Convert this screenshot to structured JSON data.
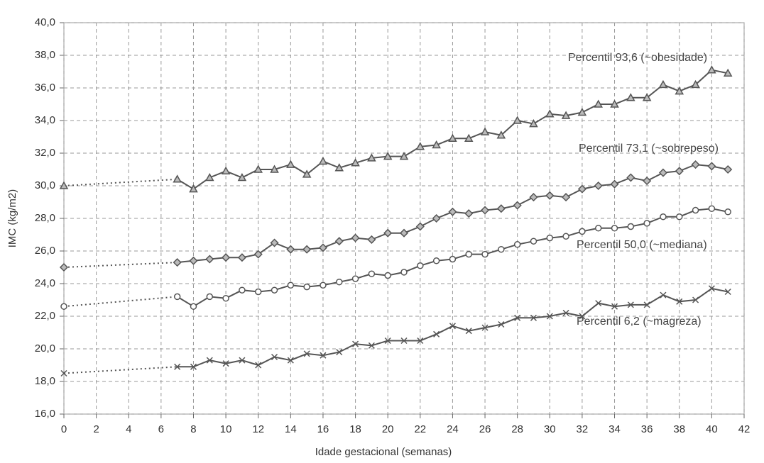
{
  "chart_data": {
    "type": "line",
    "x_label": "Idade gestacional (semanas)",
    "y_label": "IMC (kg/m2)",
    "x": [
      0,
      7,
      8,
      9,
      10,
      11,
      12,
      13,
      14,
      15,
      16,
      17,
      18,
      19,
      20,
      21,
      22,
      23,
      24,
      25,
      26,
      27,
      28,
      29,
      30,
      31,
      32,
      33,
      34,
      35,
      36,
      37,
      38,
      39,
      40,
      41
    ],
    "series": [
      {
        "name": "Percentil 93,6 (~obesidade)",
        "color": "#555555",
        "marker": "triangle",
        "values": [
          30.0,
          30.4,
          29.8,
          30.5,
          30.9,
          30.5,
          31.0,
          31.0,
          31.3,
          30.7,
          31.5,
          31.1,
          31.4,
          31.7,
          31.8,
          31.8,
          32.4,
          32.5,
          32.9,
          32.9,
          33.3,
          33.1,
          34.0,
          33.8,
          34.4,
          34.3,
          34.5,
          35.0,
          35.0,
          35.4,
          35.4,
          36.2,
          35.8,
          36.2,
          37.1,
          36.9
        ]
      },
      {
        "name": "Percentil 73,1 (~sobrepeso)",
        "color": "#555555",
        "marker": "diamond",
        "values": [
          25.0,
          25.3,
          25.4,
          25.5,
          25.6,
          25.6,
          25.8,
          26.5,
          26.1,
          26.1,
          26.2,
          26.6,
          26.8,
          26.7,
          27.1,
          27.1,
          27.5,
          28.0,
          28.4,
          28.3,
          28.5,
          28.6,
          28.8,
          29.3,
          29.4,
          29.3,
          29.8,
          30.0,
          30.1,
          30.5,
          30.3,
          30.8,
          30.9,
          31.3,
          31.2,
          31.0
        ]
      },
      {
        "name": "Percentil 50,0 (~mediana)",
        "color": "#555555",
        "marker": "circle",
        "values": [
          22.6,
          23.2,
          22.6,
          23.2,
          23.1,
          23.6,
          23.5,
          23.6,
          23.9,
          23.8,
          23.9,
          24.1,
          24.3,
          24.6,
          24.5,
          24.7,
          25.1,
          25.4,
          25.5,
          25.8,
          25.8,
          26.1,
          26.4,
          26.6,
          26.8,
          26.9,
          27.2,
          27.4,
          27.4,
          27.5,
          27.7,
          28.1,
          28.1,
          28.5,
          28.6,
          28.4
        ]
      },
      {
        "name": "Percentil 6,2 (~magreza)",
        "color": "#555555",
        "marker": "x",
        "values": [
          18.5,
          18.9,
          18.9,
          19.3,
          19.1,
          19.3,
          19.0,
          19.5,
          19.3,
          19.7,
          19.6,
          19.8,
          20.3,
          20.2,
          20.5,
          20.5,
          20.5,
          20.9,
          21.4,
          21.1,
          21.3,
          21.5,
          21.9,
          21.9,
          22.0,
          22.2,
          22.0,
          22.8,
          22.6,
          22.7,
          22.7,
          23.3,
          22.9,
          23.0,
          23.7,
          23.5
        ]
      }
    ],
    "xlim": [
      0,
      42
    ],
    "xticks": [
      0,
      2,
      4,
      6,
      8,
      10,
      12,
      14,
      16,
      18,
      20,
      22,
      24,
      26,
      28,
      30,
      32,
      34,
      36,
      38,
      40,
      42
    ],
    "ylim": [
      16,
      40
    ],
    "yticks": [
      {
        "value": 16,
        "label": "16,0"
      },
      {
        "value": 18,
        "label": "18,0"
      },
      {
        "value": 20,
        "label": "20,0"
      },
      {
        "value": 22,
        "label": "22,0"
      },
      {
        "value": 24,
        "label": "24,0"
      },
      {
        "value": 26,
        "label": "26,0"
      },
      {
        "value": 28,
        "label": "28,0"
      },
      {
        "value": 30,
        "label": "30,0"
      },
      {
        "value": 32,
        "label": "32,0"
      },
      {
        "value": 34,
        "label": "34,0"
      },
      {
        "value": 36,
        "label": "36,0"
      },
      {
        "value": 38,
        "label": "38,0"
      },
      {
        "value": 40,
        "label": "40,0"
      }
    ],
    "grid": true
  }
}
